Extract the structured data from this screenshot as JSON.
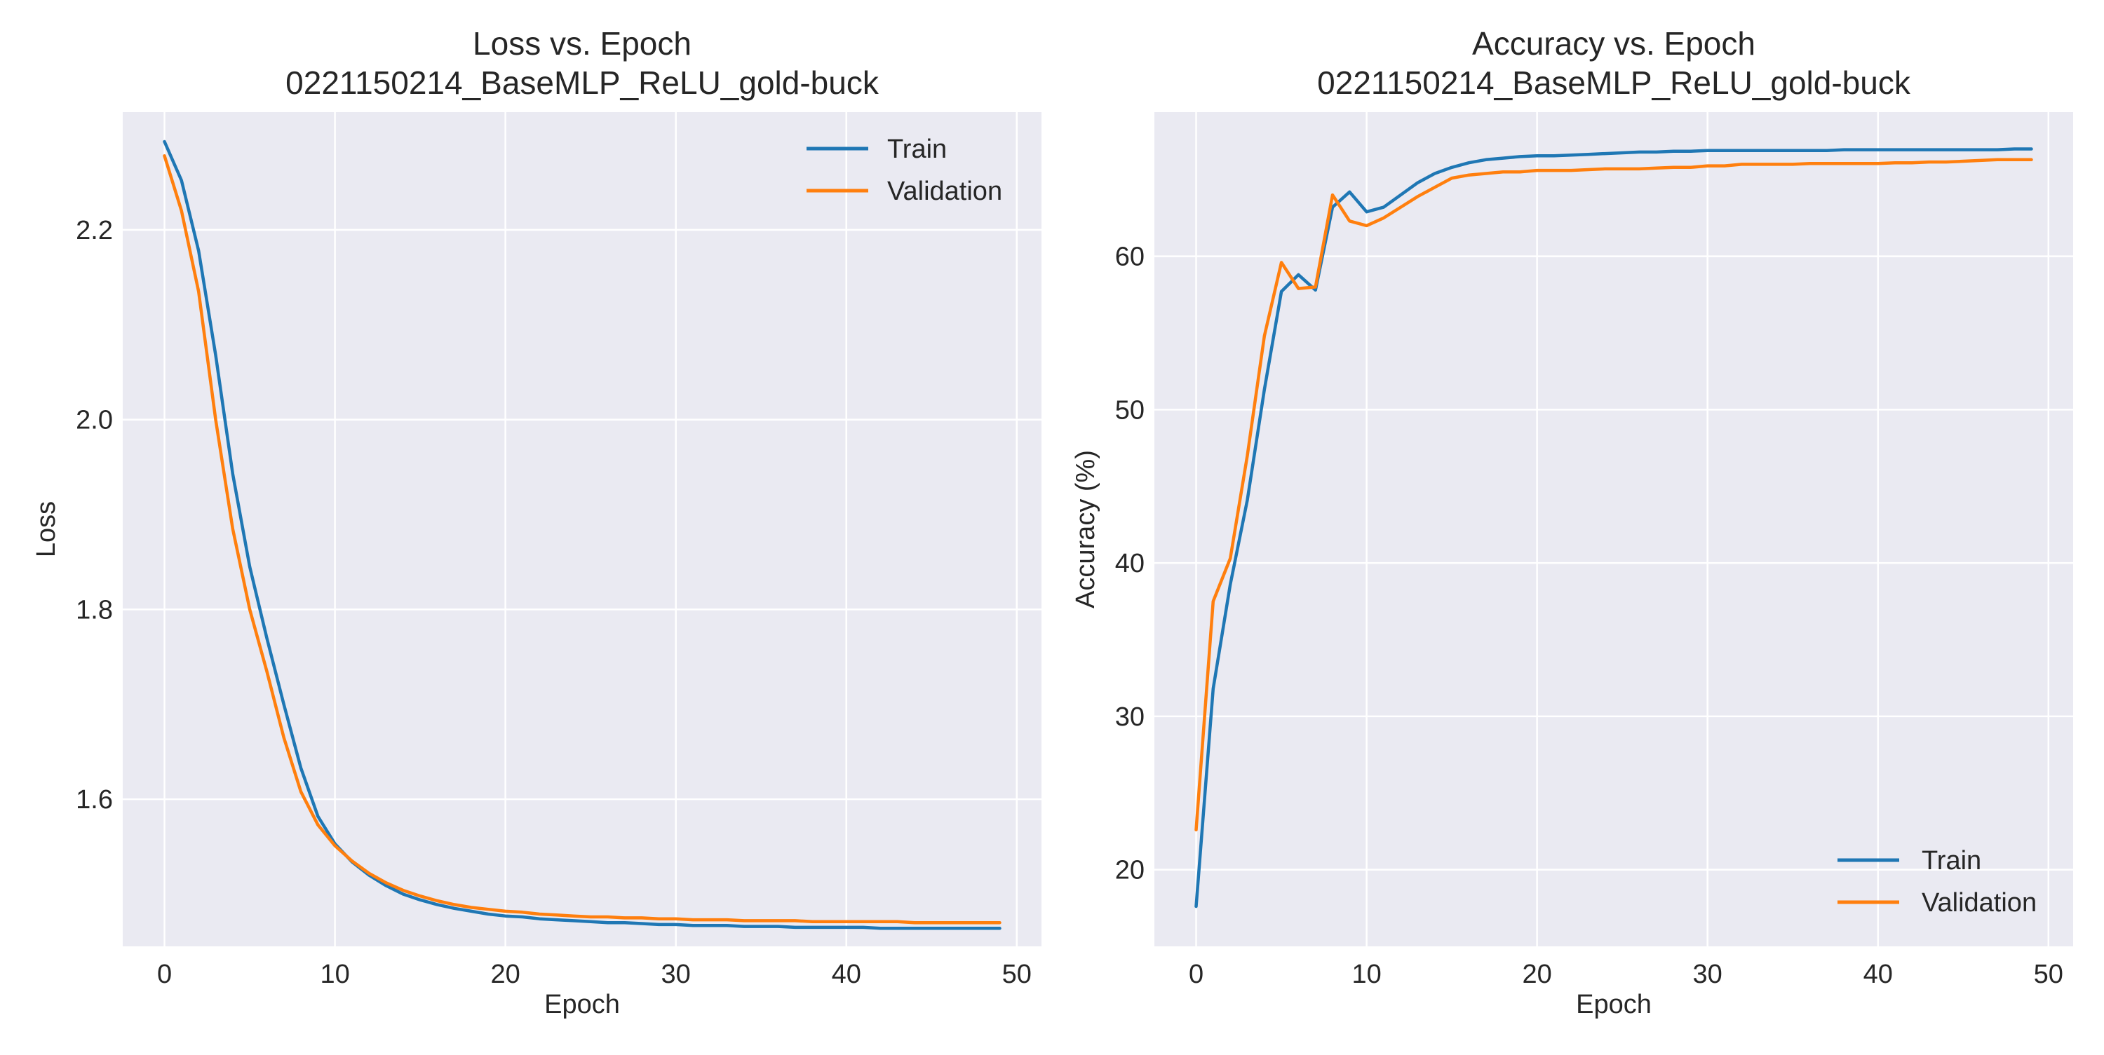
{
  "chart_data": [
    {
      "type": "line",
      "title": "Loss vs. Epoch",
      "subtitle": "0221150214_BaseMLP_ReLU_gold-buck",
      "xlabel": "Epoch",
      "ylabel": "Loss",
      "xlim": [
        -2.45,
        51.45
      ],
      "ylim": [
        1.445,
        2.324
      ],
      "xticks": [
        0,
        10,
        20,
        30,
        40,
        50
      ],
      "yticks": [
        1.6,
        1.8,
        2.0,
        2.2
      ],
      "ytick_labels": [
        "1.6",
        "1.8",
        "2.0",
        "2.2"
      ],
      "grid": true,
      "legend_position": "upper right",
      "x": [
        0,
        1,
        2,
        3,
        4,
        5,
        6,
        7,
        8,
        9,
        10,
        11,
        12,
        13,
        14,
        15,
        16,
        17,
        18,
        19,
        20,
        21,
        22,
        23,
        24,
        25,
        26,
        27,
        28,
        29,
        30,
        31,
        32,
        33,
        34,
        35,
        36,
        37,
        38,
        39,
        40,
        41,
        42,
        43,
        44,
        45,
        46,
        47,
        48,
        49
      ],
      "series": [
        {
          "name": "Train",
          "color": "#1f77b4",
          "values": [
            2.293,
            2.252,
            2.178,
            2.068,
            1.943,
            1.845,
            1.77,
            1.7,
            1.633,
            1.582,
            1.553,
            1.534,
            1.52,
            1.509,
            1.5,
            1.494,
            1.489,
            1.485,
            1.482,
            1.479,
            1.477,
            1.476,
            1.474,
            1.473,
            1.472,
            1.471,
            1.47,
            1.47,
            1.469,
            1.468,
            1.468,
            1.467,
            1.467,
            1.467,
            1.466,
            1.466,
            1.466,
            1.465,
            1.465,
            1.465,
            1.465,
            1.465,
            1.464,
            1.464,
            1.464,
            1.464,
            1.464,
            1.464,
            1.464,
            1.464
          ]
        },
        {
          "name": "Validation",
          "color": "#ff7f0e",
          "values": [
            2.278,
            2.22,
            2.135,
            2.0,
            1.885,
            1.8,
            1.735,
            1.665,
            1.608,
            1.573,
            1.551,
            1.535,
            1.522,
            1.512,
            1.504,
            1.498,
            1.493,
            1.489,
            1.486,
            1.484,
            1.482,
            1.481,
            1.479,
            1.478,
            1.477,
            1.476,
            1.476,
            1.475,
            1.475,
            1.474,
            1.474,
            1.473,
            1.473,
            1.473,
            1.472,
            1.472,
            1.472,
            1.472,
            1.471,
            1.471,
            1.471,
            1.471,
            1.471,
            1.471,
            1.47,
            1.47,
            1.47,
            1.47,
            1.47,
            1.47
          ]
        }
      ]
    },
    {
      "type": "line",
      "title": "Accuracy vs. Epoch",
      "subtitle": "0221150214_BaseMLP_ReLU_gold-buck",
      "xlabel": "Epoch",
      "ylabel": "Accuracy (%)",
      "xlim": [
        -2.45,
        51.45
      ],
      "ylim": [
        15.0,
        69.4
      ],
      "xticks": [
        0,
        10,
        20,
        30,
        40,
        50
      ],
      "yticks": [
        20,
        30,
        40,
        50,
        60
      ],
      "ytick_labels": [
        "20",
        "30",
        "40",
        "50",
        "60"
      ],
      "grid": true,
      "legend_position": "lower right",
      "x": [
        0,
        1,
        2,
        3,
        4,
        5,
        6,
        7,
        8,
        9,
        10,
        11,
        12,
        13,
        14,
        15,
        16,
        17,
        18,
        19,
        20,
        21,
        22,
        23,
        24,
        25,
        26,
        27,
        28,
        29,
        30,
        31,
        32,
        33,
        34,
        35,
        36,
        37,
        38,
        39,
        40,
        41,
        42,
        43,
        44,
        45,
        46,
        47,
        48,
        49
      ],
      "series": [
        {
          "name": "Train",
          "color": "#1f77b4",
          "values": [
            17.6,
            31.8,
            38.6,
            44.1,
            51.3,
            57.7,
            58.8,
            57.8,
            63.2,
            64.2,
            62.9,
            63.2,
            64.0,
            64.8,
            65.4,
            65.8,
            66.1,
            66.3,
            66.4,
            66.5,
            66.55,
            66.55,
            66.6,
            66.65,
            66.7,
            66.75,
            66.8,
            66.8,
            66.85,
            66.85,
            66.9,
            66.9,
            66.9,
            66.9,
            66.9,
            66.9,
            66.9,
            66.9,
            66.95,
            66.95,
            66.95,
            66.95,
            66.95,
            66.95,
            66.95,
            66.95,
            66.95,
            66.95,
            67.0,
            67.0
          ]
        },
        {
          "name": "Validation",
          "color": "#ff7f0e",
          "values": [
            22.6,
            37.5,
            40.3,
            47.0,
            54.8,
            59.6,
            57.9,
            58.0,
            64.0,
            62.3,
            62.0,
            62.5,
            63.2,
            63.9,
            64.5,
            65.1,
            65.3,
            65.4,
            65.5,
            65.5,
            65.6,
            65.6,
            65.6,
            65.65,
            65.7,
            65.7,
            65.7,
            65.75,
            65.8,
            65.8,
            65.9,
            65.9,
            66.0,
            66.0,
            66.0,
            66.0,
            66.05,
            66.05,
            66.05,
            66.05,
            66.05,
            66.1,
            66.1,
            66.15,
            66.15,
            66.2,
            66.25,
            66.3,
            66.3,
            66.3
          ]
        }
      ]
    }
  ]
}
